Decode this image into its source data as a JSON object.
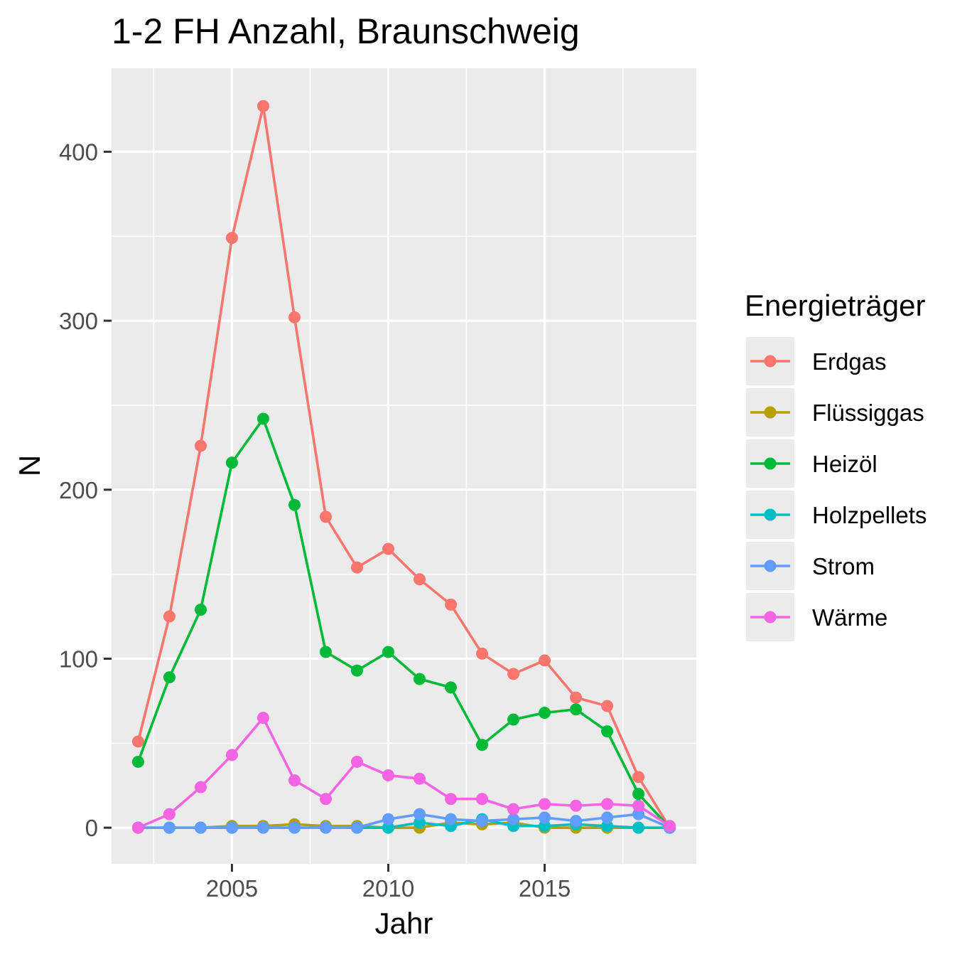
{
  "chart_data": {
    "type": "line",
    "title": "1-2 FH Anzahl, Braunschweig",
    "xlabel": "Jahr",
    "ylabel": "N",
    "xlim": [
      2001.15,
      2019.85
    ],
    "ylim": [
      -21.4,
      449.4
    ],
    "x_ticks": [
      2005,
      2010,
      2015
    ],
    "x_tick_labels": [
      "2005",
      "2010",
      "2015"
    ],
    "y_ticks": [
      0,
      100,
      200,
      300,
      400
    ],
    "y_tick_labels": [
      "0",
      "100",
      "200",
      "300",
      "400"
    ],
    "grid": true,
    "panel_background": "#ebebeb",
    "legend": {
      "title": "Energieträger",
      "position": "right"
    },
    "x": [
      2002,
      2003,
      2004,
      2005,
      2006,
      2007,
      2008,
      2009,
      2010,
      2011,
      2012,
      2013,
      2014,
      2015,
      2016,
      2017,
      2018,
      2019
    ],
    "series": [
      {
        "name": "Erdgas",
        "color": "#F8766D",
        "values": [
          51,
          125,
          226,
          349,
          427,
          302,
          184,
          154,
          165,
          147,
          132,
          103,
          91,
          99,
          77,
          72,
          30,
          0
        ]
      },
      {
        "name": "Flüssiggas",
        "color": "#B79F00",
        "values": [
          0,
          0,
          0,
          1,
          1,
          2,
          1,
          1,
          0,
          0,
          3,
          2,
          3,
          0,
          0,
          0,
          0,
          0
        ]
      },
      {
        "name": "Heizöl",
        "color": "#00BA38",
        "values": [
          39,
          89,
          129,
          216,
          242,
          191,
          104,
          93,
          104,
          88,
          83,
          49,
          64,
          68,
          70,
          57,
          20,
          0
        ]
      },
      {
        "name": "Holzpellets",
        "color": "#00BFC4",
        "values": [
          0,
          0,
          0,
          0,
          0,
          0,
          0,
          0,
          0,
          3,
          1,
          5,
          1,
          1,
          2,
          1,
          0,
          0
        ]
      },
      {
        "name": "Strom",
        "color": "#619CFF",
        "values": [
          0,
          0,
          0,
          0,
          0,
          0,
          0,
          0,
          5,
          8,
          5,
          4,
          5,
          6,
          4,
          6,
          8,
          0
        ]
      },
      {
        "name": "Wärme",
        "color": "#F564E3",
        "values": [
          0,
          8,
          24,
          43,
          65,
          28,
          17,
          39,
          31,
          29,
          17,
          17,
          11,
          14,
          13,
          14,
          13,
          1
        ]
      }
    ]
  }
}
